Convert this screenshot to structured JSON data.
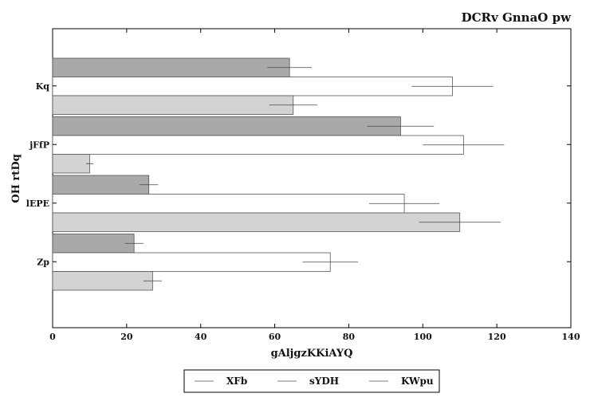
{
  "chart_data": {
    "type": "bar",
    "orientation": "horizontal",
    "title": "DCRv GnnaO pw",
    "xlabel": "gAljgzKKiAYQ",
    "ylabel": "OH  rtDq",
    "xlim": [
      0,
      140
    ],
    "x_ticks": [
      0,
      20,
      40,
      60,
      80,
      100,
      120,
      140
    ],
    "categories": [
      "Kq",
      "jFfP",
      "lEPE",
      "Zp"
    ],
    "series": [
      {
        "name": "XFb",
        "color": "#a9a9a9",
        "values": [
          64,
          94,
          26,
          22
        ],
        "errors": [
          6,
          9,
          2.5,
          2.5
        ]
      },
      {
        "name": "sYDH",
        "color": "#ffffff",
        "values": [
          108,
          111,
          95,
          75
        ],
        "errors": [
          11,
          11,
          9.5,
          7.5
        ]
      },
      {
        "name": "KWpu",
        "color": "#d3d3d3",
        "values": [
          65,
          10,
          110,
          27
        ],
        "errors": [
          6.5,
          1,
          11,
          2.5
        ]
      }
    ],
    "grid": false,
    "legend_position": "bottom-center",
    "error_bars": true
  }
}
